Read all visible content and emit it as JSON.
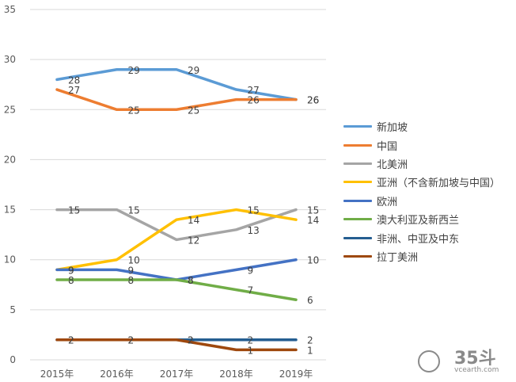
{
  "chart_data": {
    "type": "line",
    "title": "",
    "xlabel": "",
    "ylabel": "",
    "categories": [
      "2015年",
      "2016年",
      "2017年",
      "2018年",
      "2019年"
    ],
    "ylim": [
      0,
      35
    ],
    "yticks": [
      0,
      5,
      10,
      15,
      20,
      25,
      30,
      35
    ],
    "grid": true,
    "legend_position": "right",
    "series": [
      {
        "name": "新加坡",
        "color": "#5B9BD5",
        "values": [
          28,
          29,
          29,
          27,
          26
        ]
      },
      {
        "name": "中国",
        "color": "#ED7D31",
        "values": [
          27,
          25,
          25,
          26,
          26
        ]
      },
      {
        "name": "北美洲",
        "color": "#A5A5A5",
        "values": [
          15,
          15,
          12,
          13,
          15
        ]
      },
      {
        "name": "亚洲（不含新加坡与中国）",
        "color": "#FFC000",
        "values": [
          9,
          10,
          14,
          15,
          14
        ]
      },
      {
        "name": "欧洲",
        "color": "#4472C4",
        "values": [
          9,
          9,
          8,
          9,
          10
        ]
      },
      {
        "name": "澳大利亚及新西兰",
        "color": "#70AD47",
        "values": [
          8,
          8,
          8,
          7,
          6
        ]
      },
      {
        "name": "非洲、中亚及中东",
        "color": "#255E91",
        "values": [
          2,
          2,
          2,
          2,
          2
        ]
      },
      {
        "name": "拉丁美洲",
        "color": "#9E480E",
        "values": [
          2,
          2,
          2,
          1,
          1
        ]
      }
    ]
  },
  "watermark": {
    "brand": "35斗",
    "url": "vcearth.com"
  }
}
